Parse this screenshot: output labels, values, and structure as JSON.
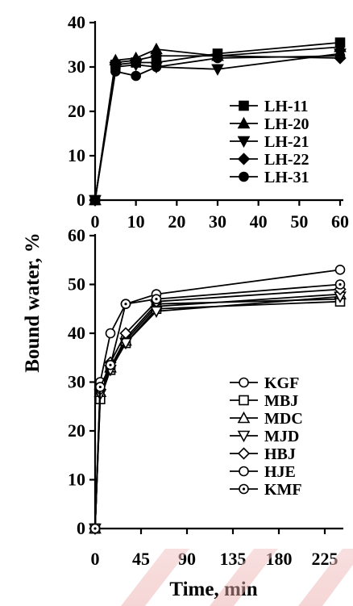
{
  "chart_data": [
    {
      "type": "line",
      "xlabel": "",
      "ylabel": "",
      "xlim": [
        0,
        60
      ],
      "ylim": [
        0,
        40
      ],
      "xticks": [
        0,
        10,
        20,
        30,
        40,
        50,
        60
      ],
      "yticks": [
        0,
        10,
        20,
        30,
        40
      ],
      "grid": false,
      "legend": "lower-right",
      "series": [
        {
          "name": "LH-11",
          "marker": "square-filled",
          "x": [
            0,
            5,
            10,
            15,
            30,
            60
          ],
          "y": [
            0,
            30.5,
            31,
            31,
            33,
            35.5
          ]
        },
        {
          "name": "LH-20",
          "marker": "triangle-up-filled",
          "x": [
            0,
            5,
            10,
            15,
            30,
            60
          ],
          "y": [
            0,
            31.5,
            32,
            34,
            32.5,
            34.5
          ]
        },
        {
          "name": "LH-21",
          "marker": "triangle-down-filled",
          "x": [
            0,
            5,
            10,
            15,
            30,
            60
          ],
          "y": [
            0,
            30,
            30.5,
            30,
            29.5,
            33
          ]
        },
        {
          "name": "LH-22",
          "marker": "diamond-filled",
          "x": [
            0,
            5,
            10,
            15,
            30,
            60
          ],
          "y": [
            0,
            31,
            31.5,
            32.5,
            32.5,
            32
          ]
        },
        {
          "name": "LH-31",
          "marker": "circle-filled",
          "x": [
            0,
            5,
            10,
            15,
            30,
            60
          ],
          "y": [
            0,
            29,
            28,
            30,
            32,
            32.5
          ]
        }
      ]
    },
    {
      "type": "line",
      "xlabel": "Time, min",
      "ylabel": "Bound water, %",
      "xlim": [
        0,
        240
      ],
      "ylim": [
        0,
        60
      ],
      "xticks": [
        0,
        45,
        90,
        135,
        180,
        225
      ],
      "yticks": [
        0,
        10,
        20,
        30,
        40,
        50,
        60
      ],
      "grid": false,
      "legend": "lower-right",
      "series": [
        {
          "name": "KGF",
          "marker": "circle-open",
          "x": [
            0,
            5,
            15,
            30,
            60,
            240
          ],
          "y": [
            0,
            27,
            33,
            39,
            46,
            47
          ]
        },
        {
          "name": "MBJ",
          "marker": "square-open",
          "x": [
            0,
            5,
            15,
            30,
            60,
            240
          ],
          "y": [
            0,
            26.5,
            32.5,
            38,
            45,
            46.5
          ]
        },
        {
          "name": "MDC",
          "marker": "triangle-up-open",
          "x": [
            0,
            5,
            15,
            30,
            60,
            240
          ],
          "y": [
            0,
            28,
            33,
            38.5,
            45.5,
            48
          ]
        },
        {
          "name": "MJD",
          "marker": "triangle-down-open",
          "x": [
            0,
            5,
            15,
            30,
            60,
            240
          ],
          "y": [
            0,
            27.5,
            32.5,
            38,
            44.5,
            47.5
          ]
        },
        {
          "name": "HBJ",
          "marker": "diamond-open",
          "x": [
            0,
            5,
            15,
            30,
            60,
            240
          ],
          "y": [
            0,
            28.5,
            34,
            40,
            46.5,
            49
          ]
        },
        {
          "name": "HJE",
          "marker": "circle-open",
          "x": [
            0,
            5,
            15,
            30,
            60,
            240
          ],
          "y": [
            0,
            30,
            40,
            46,
            48,
            53
          ]
        },
        {
          "name": "KMF",
          "marker": "circle-dot-open",
          "x": [
            0,
            5,
            15,
            30,
            60,
            240
          ],
          "y": [
            0,
            29,
            33.5,
            46,
            47,
            50
          ]
        }
      ]
    }
  ]
}
